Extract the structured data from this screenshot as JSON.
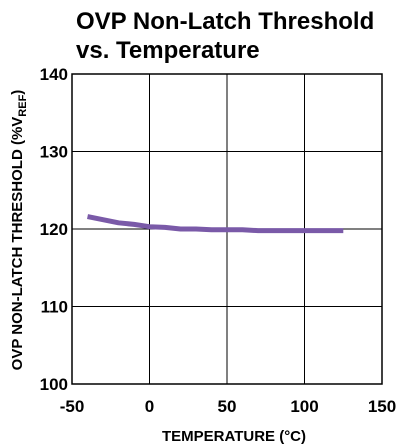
{
  "chart_data": {
    "type": "line",
    "title_line1": "OVP Non-Latch Threshold",
    "title_line2": "vs. Temperature",
    "xlabel": "TEMPERATURE (°C)",
    "ylabel_main": "OVP NON-LATCH THRESHOLD (%V",
    "ylabel_sub": "REF",
    "ylabel_close": ")",
    "xlim": [
      -50,
      150
    ],
    "ylim": [
      100,
      140
    ],
    "x_ticks": [
      -50,
      0,
      50,
      100,
      150
    ],
    "x_tick_labels": [
      "-50",
      "0",
      "50",
      "100",
      "150"
    ],
    "y_ticks": [
      100,
      110,
      120,
      130,
      140
    ],
    "y_tick_labels": [
      "100",
      "110",
      "120",
      "130",
      "140"
    ],
    "grid": true,
    "series": [
      {
        "color": "#7a5aa8",
        "x": [
          -40,
          -30,
          -20,
          -10,
          0,
          10,
          20,
          30,
          40,
          50,
          60,
          70,
          80,
          90,
          100,
          110,
          125
        ],
        "y": [
          121.6,
          121.2,
          120.8,
          120.6,
          120.3,
          120.2,
          120.0,
          120.0,
          119.9,
          119.9,
          119.9,
          119.8,
          119.8,
          119.8,
          119.8,
          119.8,
          119.8
        ]
      }
    ]
  }
}
